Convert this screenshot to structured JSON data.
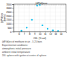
{
  "chart_data": {
    "type": "scatter",
    "xlabel": "CH₄ (% vol)",
    "ylabel": "(dP/dt)ex\n(bar/s)",
    "x": [
      6.5,
      7.5,
      8.5,
      9.5,
      10.0,
      10.5,
      11.5,
      12.5,
      13.5
    ],
    "values": [
      100,
      500,
      1500,
      3300,
      3400,
      800,
      350,
      150,
      80
    ],
    "color": "#00bbee",
    "xlim": [
      5,
      15
    ],
    "ylim": [
      0,
      3500
    ],
    "xticks": [
      6,
      7,
      8,
      9,
      10,
      11,
      12,
      13,
      14
    ],
    "yticks": [
      0,
      500,
      1000,
      1500,
      2000,
      2500,
      3000,
      3500
    ],
    "grid": true,
    "hline": 3400,
    "annotations": [
      {
        "text": "(dP/dt)max",
        "x": 9.2,
        "y": 3460
      }
    ],
    "caption": "(dP/dt)ex of methane in air - 3.25 bars",
    "notes": [
      "Experimental conditions:",
      "atmospheric initial pressure",
      "ambient initial temperature",
      "20L sphere with igniter at centre of sphere"
    ]
  }
}
